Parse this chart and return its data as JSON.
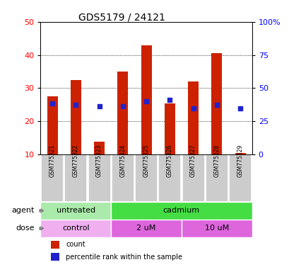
{
  "title": "GDS5179 / 24121",
  "samples": [
    "GSM775321",
    "GSM775322",
    "GSM775323",
    "GSM775324",
    "GSM775325",
    "GSM775326",
    "GSM775327",
    "GSM775328",
    "GSM775329"
  ],
  "bar_values": [
    27.5,
    32.5,
    14.0,
    35.0,
    43.0,
    25.5,
    32.0,
    40.5,
    10.5
  ],
  "dot_values": [
    25.5,
    25.0,
    24.5,
    24.5,
    26.0,
    26.5,
    24.0,
    25.0,
    24.0
  ],
  "bar_bottom": 10,
  "ylim_left": [
    10,
    50
  ],
  "ylim_right": [
    0,
    100
  ],
  "yticks_left": [
    10,
    20,
    30,
    40,
    50
  ],
  "yticks_right": [
    0,
    25,
    50,
    75,
    100
  ],
  "ytick_labels_right": [
    "0",
    "25",
    "50",
    "75",
    "100%"
  ],
  "bar_color": "#cc2200",
  "dot_color": "#2222cc",
  "agent_groups": [
    {
      "label": "untreated",
      "span": [
        0,
        3
      ],
      "color": "#aaeaaa"
    },
    {
      "label": "cadmium",
      "span": [
        3,
        9
      ],
      "color": "#44dd44"
    }
  ],
  "dose_groups": [
    {
      "label": "control",
      "span": [
        0,
        3
      ],
      "color": "#f0b0f0"
    },
    {
      "label": "2 uM",
      "span": [
        3,
        6
      ],
      "color": "#dd66dd"
    },
    {
      "label": "10 uM",
      "span": [
        6,
        9
      ],
      "color": "#dd66dd"
    }
  ],
  "sample_box_color": "#cccccc",
  "figsize": [
    4.1,
    3.84
  ],
  "dpi": 100
}
